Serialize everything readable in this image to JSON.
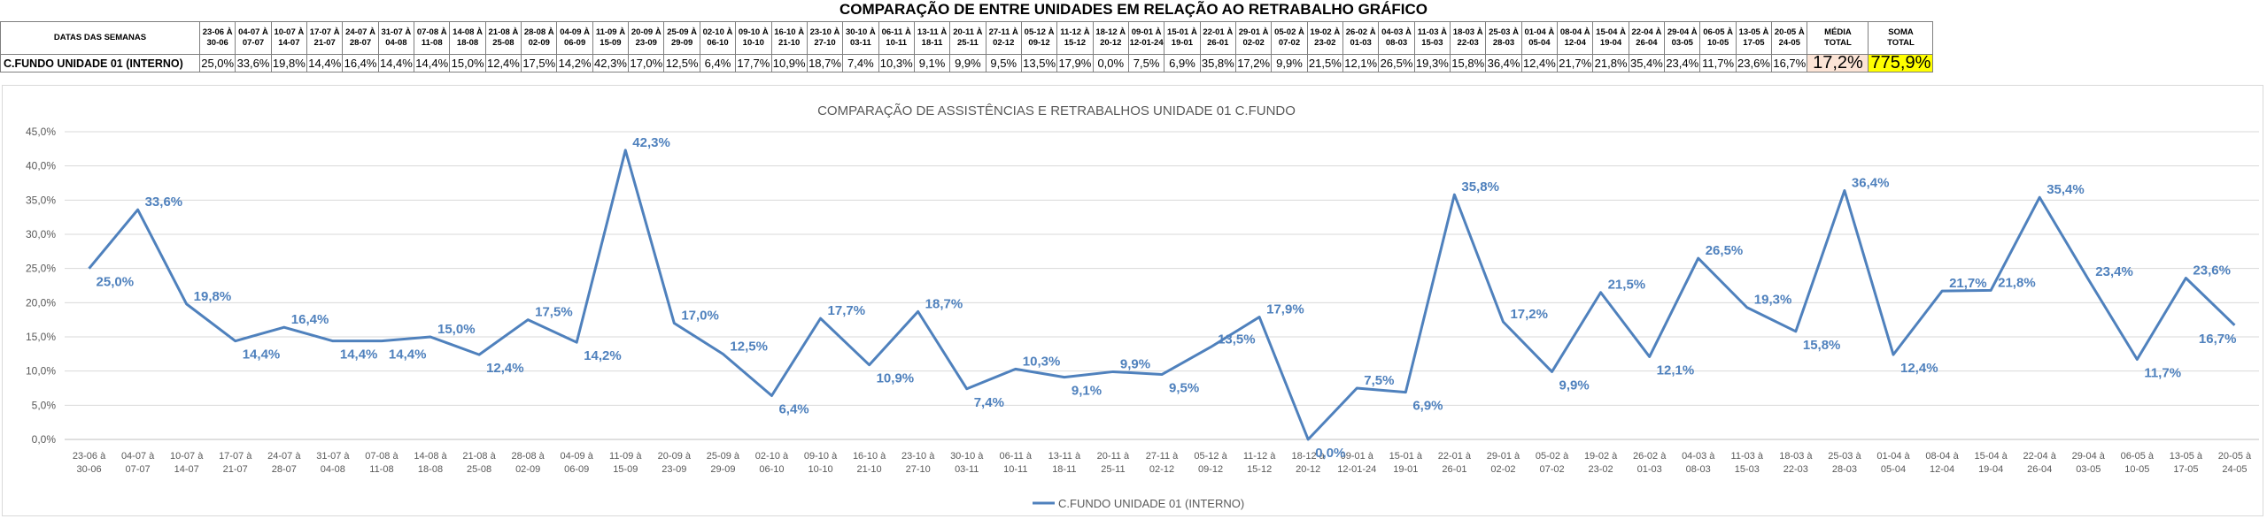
{
  "page": {
    "title": "COMPARAÇÃO DE ENTRE UNIDADES EM RELAÇÃO AO RETRABALHO GRÁFICO"
  },
  "table": {
    "header_label": "DATAS DAS SEMANAS",
    "row_label": "C.FUNDO UNIDADE 01 (INTERNO)",
    "weeks": [
      [
        "23-06 À",
        "30-06"
      ],
      [
        "04-07 À",
        "07-07"
      ],
      [
        "10-07 À",
        "14-07"
      ],
      [
        "17-07 À",
        "21-07"
      ],
      [
        "24-07 À",
        "28-07"
      ],
      [
        "31-07 À",
        "04-08"
      ],
      [
        "07-08 À",
        "11-08"
      ],
      [
        "14-08 À",
        "18-08"
      ],
      [
        "21-08 À",
        "25-08"
      ],
      [
        "28-08 À",
        "02-09"
      ],
      [
        "04-09 À",
        "06-09"
      ],
      [
        "11-09 À",
        "15-09"
      ],
      [
        "20-09 À",
        "23-09"
      ],
      [
        "25-09 À",
        "29-09"
      ],
      [
        "02-10 À",
        "06-10"
      ],
      [
        "09-10 À",
        "10-10"
      ],
      [
        "16-10 À",
        "21-10"
      ],
      [
        "23-10 À",
        "27-10"
      ],
      [
        "30-10 À",
        "03-11"
      ],
      [
        "06-11 À",
        "10-11"
      ],
      [
        "13-11 À",
        "18-11"
      ],
      [
        "20-11 À",
        "25-11"
      ],
      [
        "27-11 À",
        "02-12"
      ],
      [
        "05-12 À",
        "09-12"
      ],
      [
        "11-12 À",
        "15-12"
      ],
      [
        "18-12 À",
        "20-12"
      ],
      [
        "09-01 À",
        "12-01-24"
      ],
      [
        "15-01 À",
        "19-01"
      ],
      [
        "22-01 À",
        "26-01"
      ],
      [
        "29-01 À",
        "02-02"
      ],
      [
        "05-02 À",
        "07-02"
      ],
      [
        "19-02 À",
        "23-02"
      ],
      [
        "26-02 À",
        "01-03"
      ],
      [
        "04-03 À",
        "08-03"
      ],
      [
        "11-03 À",
        "15-03"
      ],
      [
        "18-03 À",
        "22-03"
      ],
      [
        "25-03 À",
        "28-03"
      ],
      [
        "01-04 À",
        "05-04"
      ],
      [
        "08-04 À",
        "12-04"
      ],
      [
        "15-04 À",
        "19-04"
      ],
      [
        "22-04 À",
        "26-04"
      ],
      [
        "29-04 À",
        "03-05"
      ],
      [
        "06-05 À",
        "10-05"
      ],
      [
        "13-05 À",
        "17-05"
      ],
      [
        "20-05 À",
        "24-05"
      ]
    ],
    "values": [
      "25,0%",
      "33,6%",
      "19,8%",
      "14,4%",
      "16,4%",
      "14,4%",
      "14,4%",
      "15,0%",
      "12,4%",
      "17,5%",
      "14,2%",
      "42,3%",
      "17,0%",
      "12,5%",
      "6,4%",
      "17,7%",
      "10,9%",
      "18,7%",
      "7,4%",
      "10,3%",
      "9,1%",
      "9,9%",
      "9,5%",
      "13,5%",
      "17,9%",
      "0,0%",
      "7,5%",
      "6,9%",
      "35,8%",
      "17,2%",
      "9,9%",
      "21,5%",
      "12,1%",
      "26,5%",
      "19,3%",
      "15,8%",
      "36,4%",
      "12,4%",
      "21,7%",
      "21,8%",
      "35,4%",
      "23,4%",
      "11,7%",
      "23,6%",
      "16,7%"
    ],
    "media_label": [
      "MÉDIA",
      "TOTAL"
    ],
    "media_value": "17,2%",
    "soma_label": [
      "SOMA",
      "TOTAL"
    ],
    "soma_value": "775,9%"
  },
  "chart_data": {
    "type": "line",
    "title": "COMPARAÇÃO DE ASSISTÊNCIAS E RETRABALHOS UNIDADE 01 C.FUNDO",
    "categories": [
      [
        "23-06 à",
        "30-06"
      ],
      [
        "04-07 à",
        "07-07"
      ],
      [
        "10-07 à",
        "14-07"
      ],
      [
        "17-07 à",
        "21-07"
      ],
      [
        "24-07 à",
        "28-07"
      ],
      [
        "31-07 à",
        "04-08"
      ],
      [
        "07-08 à",
        "11-08"
      ],
      [
        "14-08 à",
        "18-08"
      ],
      [
        "21-08 à",
        "25-08"
      ],
      [
        "28-08 à",
        "02-09"
      ],
      [
        "04-09 à",
        "06-09"
      ],
      [
        "11-09 à",
        "15-09"
      ],
      [
        "20-09 à",
        "23-09"
      ],
      [
        "25-09 à",
        "29-09"
      ],
      [
        "02-10 à",
        "06-10"
      ],
      [
        "09-10 à",
        "10-10"
      ],
      [
        "16-10 à",
        "21-10"
      ],
      [
        "23-10 à",
        "27-10"
      ],
      [
        "30-10 à",
        "03-11"
      ],
      [
        "06-11 à",
        "10-11"
      ],
      [
        "13-11 à",
        "18-11"
      ],
      [
        "20-11 à",
        "25-11"
      ],
      [
        "27-11 à",
        "02-12"
      ],
      [
        "05-12 à",
        "09-12"
      ],
      [
        "11-12 à",
        "15-12"
      ],
      [
        "18-12 à",
        "20-12"
      ],
      [
        "09-01 à",
        "12-01-24"
      ],
      [
        "15-01 à",
        "19-01"
      ],
      [
        "22-01 à",
        "26-01"
      ],
      [
        "29-01 à",
        "02-02"
      ],
      [
        "05-02 à",
        "07-02"
      ],
      [
        "19-02 à",
        "23-02"
      ],
      [
        "26-02 à",
        "01-03"
      ],
      [
        "04-03 à",
        "08-03"
      ],
      [
        "11-03 à",
        "15-03"
      ],
      [
        "18-03 à",
        "22-03"
      ],
      [
        "25-03 à",
        "28-03"
      ],
      [
        "01-04 à",
        "05-04"
      ],
      [
        "08-04 à",
        "12-04"
      ],
      [
        "15-04 à",
        "19-04"
      ],
      [
        "22-04 à",
        "26-04"
      ],
      [
        "29-04 à",
        "03-05"
      ],
      [
        "06-05 à",
        "10-05"
      ],
      [
        "13-05 à",
        "17-05"
      ],
      [
        "20-05 à",
        "24-05"
      ]
    ],
    "series": [
      {
        "name": "C.FUNDO UNIDADE 01 (INTERNO)",
        "values": [
          25.0,
          33.6,
          19.8,
          14.4,
          16.4,
          14.4,
          14.4,
          15.0,
          12.4,
          17.5,
          14.2,
          42.3,
          17.0,
          12.5,
          6.4,
          17.7,
          10.9,
          18.7,
          7.4,
          10.3,
          9.1,
          9.9,
          9.5,
          13.5,
          17.9,
          0.0,
          7.5,
          6.9,
          35.8,
          17.2,
          9.9,
          21.5,
          12.1,
          26.5,
          19.3,
          15.8,
          36.4,
          12.4,
          21.7,
          21.8,
          35.4,
          23.4,
          11.7,
          23.6,
          16.7
        ],
        "labels": [
          "25,0%",
          "33,6%",
          "19,8%",
          "14,4%",
          "16,4%",
          "14,4%",
          "14,4%",
          "15,0%",
          "12,4%",
          "17,5%",
          "14,2%",
          "42,3%",
          "17,0%",
          "12,5%",
          "6,4%",
          "17,7%",
          "10,9%",
          "18,7%",
          "7,4%",
          "10,3%",
          "9,1%",
          "9,9%",
          "9,5%",
          "13,5%",
          "17,9%",
          "0,0%",
          "7,5%",
          "6,9%",
          "35,8%",
          "17,2%",
          "9,9%",
          "21,5%",
          "12,1%",
          "26,5%",
          "19,3%",
          "15,8%",
          "36,4%",
          "12,4%",
          "21,7%",
          "21,8%",
          "35,4%",
          "23,4%",
          "11,7%",
          "23,6%",
          "16,7%"
        ]
      }
    ],
    "y_ticks": [
      "0,0%",
      "5,0%",
      "10,0%",
      "15,0%",
      "20,0%",
      "25,0%",
      "30,0%",
      "35,0%",
      "40,0%",
      "45,0%"
    ],
    "ylim": [
      0,
      45
    ],
    "grid": true,
    "legend_position": "bottom",
    "colors": {
      "line": "#4f81bd",
      "label": "#4f81bd",
      "grid": "#d9d9d9",
      "axis_text": "#595959"
    }
  }
}
